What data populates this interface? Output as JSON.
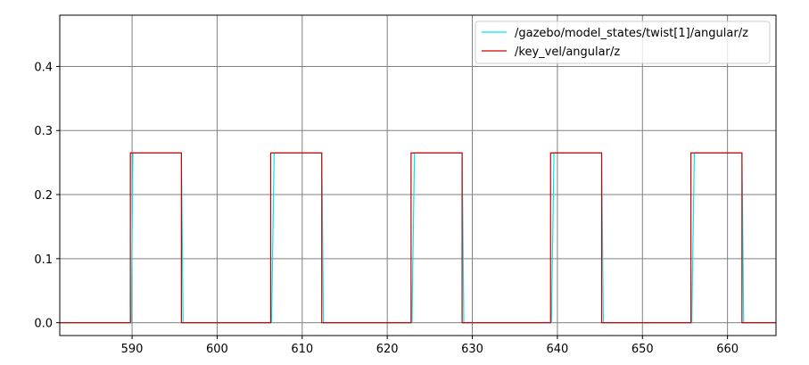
{
  "chart_data": {
    "type": "line",
    "title": "",
    "xlabel": "",
    "ylabel": "",
    "xlim": [
      581.5,
      665.7
    ],
    "ylim": [
      -0.02,
      0.48
    ],
    "x_ticks": [
      590,
      600,
      610,
      620,
      630,
      640,
      650,
      660
    ],
    "y_ticks": [
      0.0,
      0.1,
      0.2,
      0.3,
      0.4
    ],
    "x_tick_labels": [
      "590",
      "600",
      "610",
      "620",
      "630",
      "640",
      "650",
      "660"
    ],
    "y_tick_labels": [
      "0.0",
      "0.1",
      "0.2",
      "0.3",
      "0.4"
    ],
    "grid": true,
    "legend_position": "top-right",
    "series": [
      {
        "name": "/gazebo/model_states/twist[1]/angular/z",
        "color": "#00e5ee",
        "x": [
          581.5,
          589.9,
          590.1,
          595.8,
          596.0,
          606.4,
          606.7,
          612.3,
          612.5,
          622.9,
          623.2,
          628.8,
          629.0,
          639.3,
          639.6,
          645.2,
          645.4,
          655.8,
          656.1,
          661.7,
          661.9,
          665.7
        ],
        "y": [
          0.0,
          0.0,
          0.265,
          0.265,
          0.0,
          0.0,
          0.265,
          0.265,
          0.0,
          0.0,
          0.265,
          0.265,
          0.0,
          0.0,
          0.265,
          0.265,
          0.0,
          0.0,
          0.265,
          0.265,
          0.0,
          0.0
        ]
      },
      {
        "name": "/key_vel/angular/z",
        "color": "#cc0000",
        "x": [
          581.5,
          589.8,
          589.8,
          595.8,
          595.8,
          606.3,
          606.3,
          612.3,
          612.3,
          622.8,
          622.8,
          628.8,
          628.8,
          639.2,
          639.2,
          645.2,
          645.2,
          655.7,
          655.7,
          661.7,
          661.7,
          665.7
        ],
        "y": [
          0.0,
          0.0,
          0.265,
          0.265,
          0.0,
          0.0,
          0.265,
          0.265,
          0.0,
          0.0,
          0.265,
          0.265,
          0.0,
          0.0,
          0.265,
          0.265,
          0.0,
          0.0,
          0.265,
          0.265,
          0.0,
          0.0
        ]
      }
    ]
  }
}
